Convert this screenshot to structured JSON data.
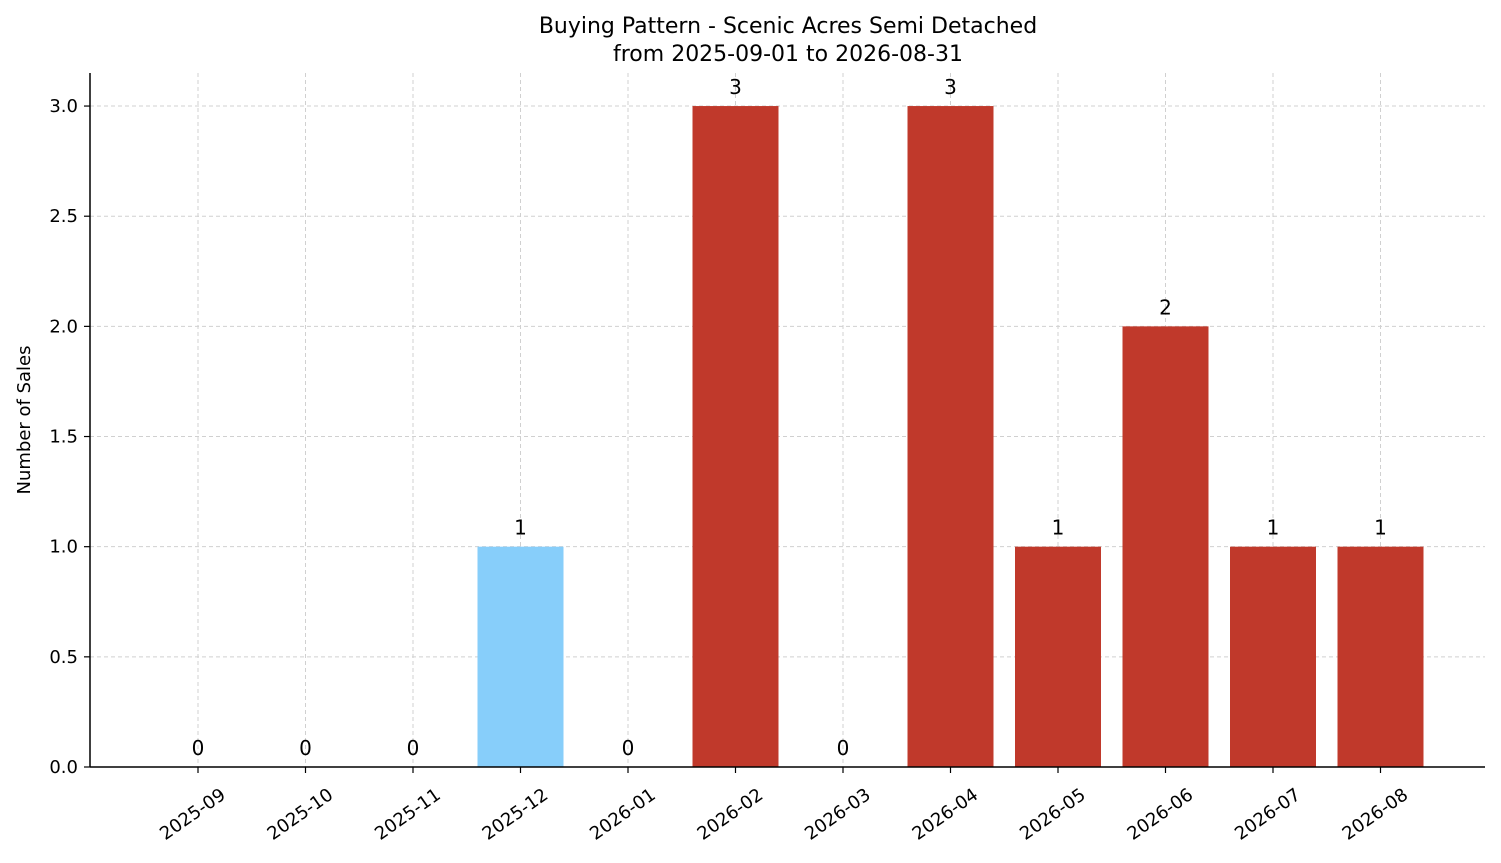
{
  "chart_data": {
    "type": "bar",
    "title": "Buying Pattern - Scenic Acres Semi Detached",
    "subtitle": "from 2025-09-01 to 2026-08-31",
    "xlabel": "",
    "ylabel": "Number of Sales",
    "categories": [
      "2025-09",
      "2025-10",
      "2025-11",
      "2025-12",
      "2026-01",
      "2026-02",
      "2026-03",
      "2026-04",
      "2026-05",
      "2026-06",
      "2026-07",
      "2026-08"
    ],
    "values": [
      0,
      0,
      0,
      1,
      0,
      3,
      0,
      3,
      1,
      2,
      1,
      1
    ],
    "bar_colors": [
      "#c0392b",
      "#c0392b",
      "#c0392b",
      "#87cefa",
      "#c0392b",
      "#c0392b",
      "#c0392b",
      "#c0392b",
      "#c0392b",
      "#c0392b",
      "#c0392b",
      "#c0392b"
    ],
    "data_labels": [
      "0",
      "0",
      "0",
      "1",
      "0",
      "3",
      "0",
      "3",
      "1",
      "2",
      "1",
      "1"
    ],
    "ylim": [
      0,
      3.15
    ],
    "yticks": [
      0.0,
      0.5,
      1.0,
      1.5,
      2.0,
      2.5,
      3.0
    ],
    "ytick_labels": [
      "0.0",
      "0.5",
      "1.0",
      "1.5",
      "2.0",
      "2.5",
      "3.0"
    ],
    "grid": true,
    "legend": null
  }
}
